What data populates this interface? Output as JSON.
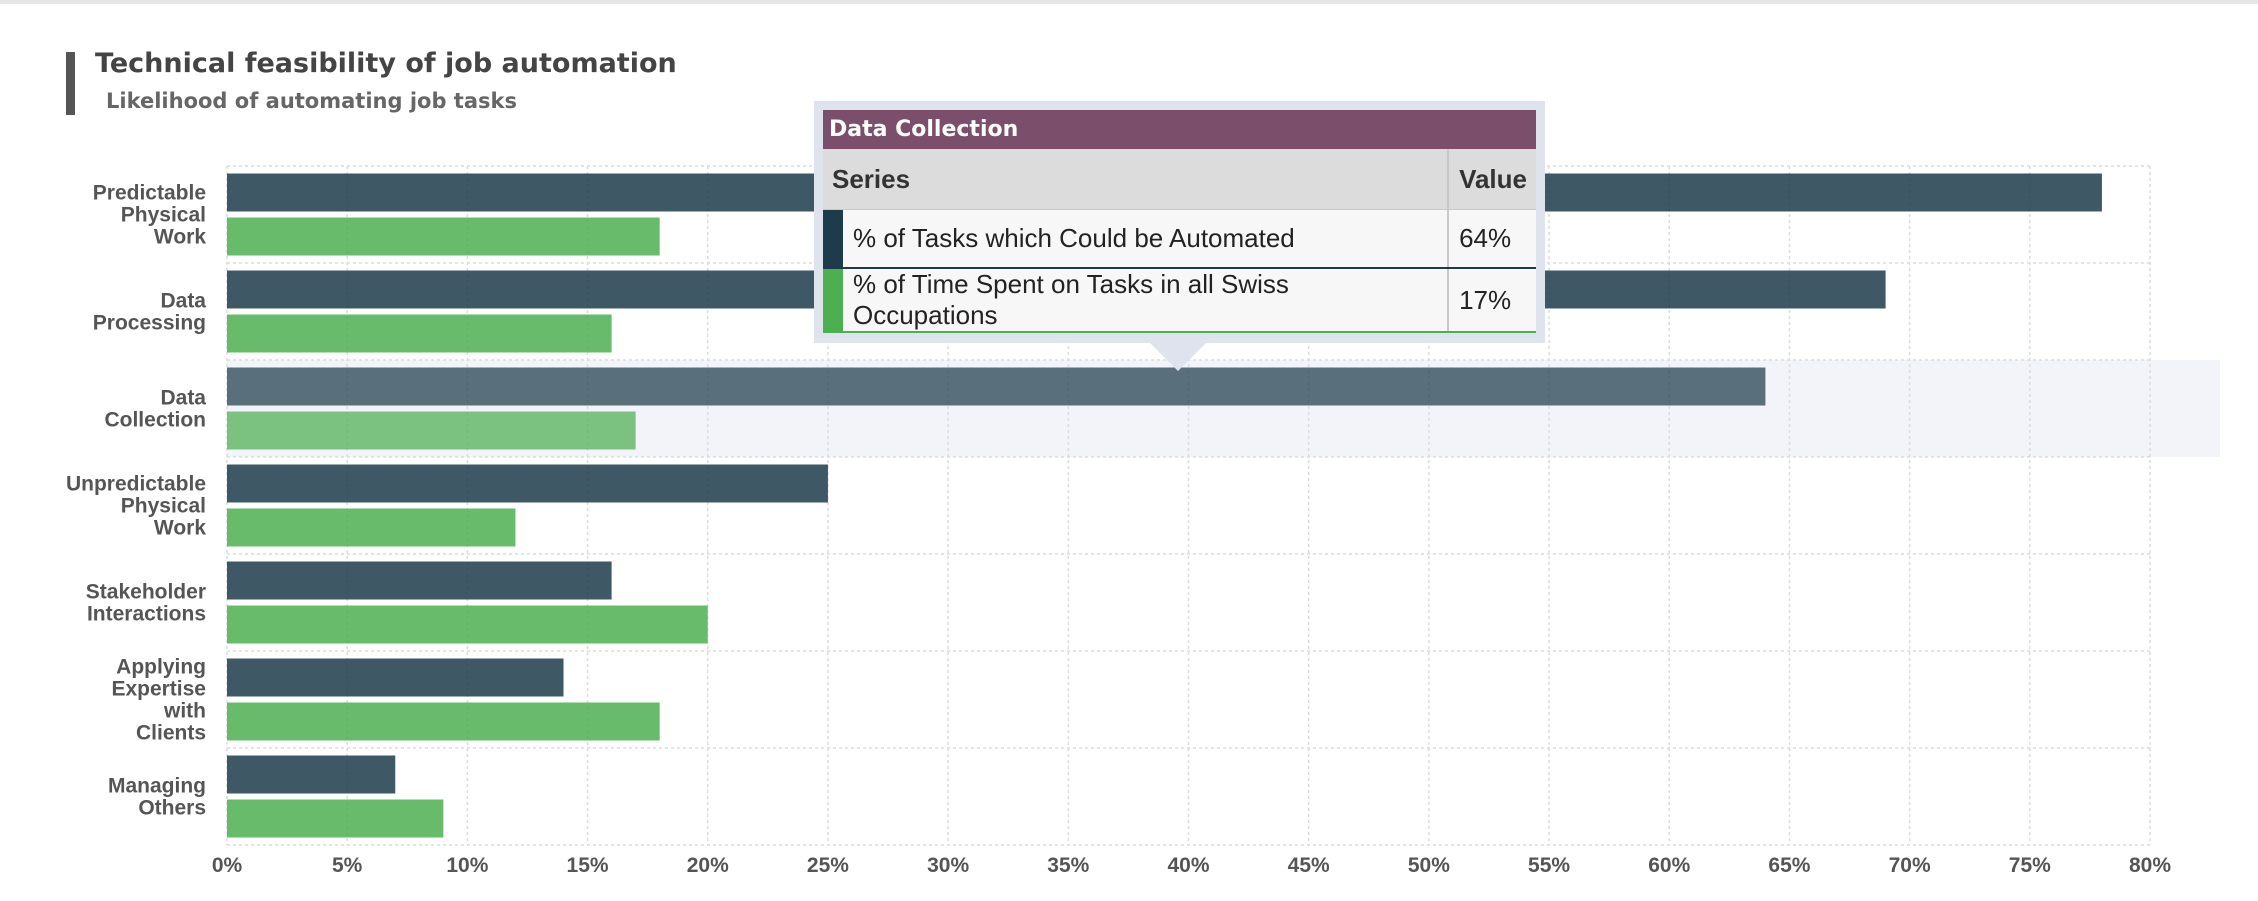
{
  "chart_data": {
    "type": "bar",
    "orientation": "horizontal",
    "title": "Technical feasibility of job automation",
    "subtitle": "Likelihood of automating job tasks",
    "categories": [
      "Predictable Physical Work",
      "Data Processing",
      "Data Collection",
      "Unpredictable Physical Work",
      "Stakeholder Interactions",
      "Applying Expertise with Clients",
      "Managing Others"
    ],
    "category_lines": [
      [
        "Predictable",
        "Physical",
        "Work"
      ],
      [
        "Data",
        "Processing"
      ],
      [
        "Data",
        "Collection"
      ],
      [
        "Unpredictable",
        "Physical",
        "Work"
      ],
      [
        "Stakeholder",
        "Interactions"
      ],
      [
        "Applying",
        "Expertise",
        "with",
        "Clients"
      ],
      [
        "Managing",
        "Others"
      ]
    ],
    "series": [
      {
        "name": "% of Tasks which Could be Automated",
        "color": "#1d3b4a",
        "values": [
          78,
          69,
          64,
          25,
          16,
          14,
          7
        ]
      },
      {
        "name": "% of Time Spent on Tasks in all Swiss Occupations",
        "color": "#4caf50",
        "values": [
          18,
          16,
          17,
          12,
          20,
          18,
          9
        ]
      }
    ],
    "xlim": [
      0,
      80
    ],
    "x_ticks": [
      "0%",
      "5%",
      "10%",
      "15%",
      "20%",
      "25%",
      "30%",
      "35%",
      "40%",
      "45%",
      "50%",
      "55%",
      "60%",
      "65%",
      "70%",
      "75%",
      "80%"
    ],
    "grid": true,
    "highlighted_category": "Data Collection"
  },
  "tooltip": {
    "header": "Data Collection",
    "col_series": "Series",
    "col_value": "Value",
    "rows": [
      {
        "series": "% of Tasks which Could be Automated",
        "value": "64%",
        "color": "#1d3b4a"
      },
      {
        "series": "% of Time Spent on Tasks in all Swiss Occupations",
        "value": "17%",
        "color": "#4caf50"
      }
    ]
  }
}
